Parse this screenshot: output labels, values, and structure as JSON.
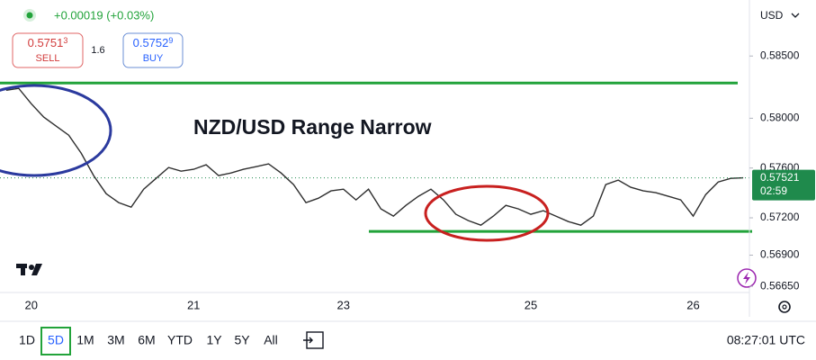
{
  "header": {
    "change": "+0.00019 (+0.03%)",
    "sell_price": "0.5751",
    "sell_price_small": "3",
    "sell_label": "SELL",
    "spread": "1.6",
    "buy_price": "0.5752",
    "buy_price_small": "9",
    "buy_label": "BUY"
  },
  "toolbar": {
    "ranges": [
      "1D",
      "5D",
      "1M",
      "3M",
      "6M",
      "YTD",
      "1Y",
      "5Y",
      "All"
    ],
    "selected": 1,
    "clock": "08:27:01 UTC"
  },
  "chart_data": {
    "type": "line",
    "title": "NZD/USD Range Narrow",
    "currency": "USD",
    "categories": [
      null,
      null,
      "20",
      null,
      null,
      null,
      null,
      null,
      null,
      null,
      null,
      null,
      null,
      null,
      null,
      "21",
      null,
      null,
      null,
      null,
      null,
      null,
      null,
      null,
      null,
      null,
      null,
      "23",
      null,
      null,
      null,
      null,
      null,
      null,
      null,
      null,
      null,
      null,
      null,
      null,
      null,
      null,
      "25",
      null,
      null,
      null,
      null,
      null,
      null,
      null,
      null,
      null,
      null,
      null,
      null,
      "26",
      null,
      null,
      null,
      null
    ],
    "series": [
      {
        "color": "#2e2e2e",
        "values": [
          0.58225,
          0.5824,
          0.58117,
          0.58009,
          0.57936,
          0.57864,
          0.5772,
          0.57539,
          0.57394,
          0.57322,
          0.57286,
          0.5743,
          0.57517,
          0.57604,
          0.57575,
          0.5759,
          0.57626,
          0.57539,
          0.5756,
          0.5759,
          0.57611,
          0.57633,
          0.5756,
          0.57467,
          0.57322,
          0.57358,
          0.57416,
          0.5743,
          0.57344,
          0.5743,
          0.57272,
          0.57214,
          0.573,
          0.57373,
          0.5743,
          0.57344,
          0.57228,
          0.57178,
          0.57141,
          0.57214,
          0.573,
          0.57272,
          0.57228,
          0.57257,
          0.57214,
          0.5717,
          0.57141,
          0.57214,
          0.57467,
          0.57503,
          0.57445,
          0.57416,
          0.57402,
          0.57373,
          0.57344,
          0.57214,
          0.57387,
          0.57488,
          0.57517,
          0.57521
        ]
      }
    ],
    "ylim": [
      0.566,
      0.5895
    ],
    "yticks": [
      {
        "value": 0.585,
        "label": "0.58500"
      },
      {
        "value": 0.58,
        "label": "0.58000"
      },
      {
        "value": 0.576,
        "label": "0.57600"
      },
      {
        "value": 0.572,
        "label": "0.57200"
      },
      {
        "value": 0.569,
        "label": "0.56900"
      },
      {
        "value": 0.5665,
        "label": "0.56650"
      }
    ],
    "levels": [
      {
        "value": 0.58283,
        "color": "#22a33a"
      },
      {
        "value": 0.57091,
        "color": "#22a33a"
      }
    ],
    "last_price_countdown": "02:59",
    "last_price_color": "#1f8a4c"
  }
}
